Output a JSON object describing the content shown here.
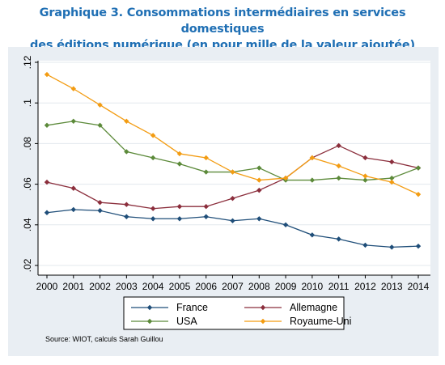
{
  "header": {
    "title_line1": "Graphique 3. Consommations intermédiaires en services domestiques",
    "title_line2": "des éditions numérique (en pour mille de la valeur ajoutée)"
  },
  "source": "Source: WIOT, calculs Sarah Guillou",
  "chart_data": {
    "type": "line",
    "title": "Graphique 3. Consommations intermédiaires en services domestiques des éditions numérique (en pour mille de la valeur ajoutée)",
    "x": [
      2000,
      2001,
      2002,
      2003,
      2004,
      2005,
      2006,
      2007,
      2008,
      2009,
      2010,
      2011,
      2012,
      2013,
      2014
    ],
    "x_tick_labels": [
      "2000",
      "2001",
      "2002",
      "2003",
      "2004",
      "2005",
      "2006",
      "2007",
      "2008",
      "2009",
      "2010",
      "2011",
      "2012",
      "2013",
      "2014"
    ],
    "ylim": [
      0.02,
      0.12
    ],
    "y_ticks": [
      0.02,
      0.04,
      0.06,
      0.08,
      0.1,
      0.12
    ],
    "y_tick_labels": [
      ".02",
      ".04",
      ".06",
      ".08",
      ".1",
      ".12"
    ],
    "grid": true,
    "legend_position": "bottom",
    "series": [
      {
        "name": "France",
        "color": "#1f4e79",
        "marker": "diamond",
        "values": [
          0.046,
          0.0475,
          0.047,
          0.044,
          0.043,
          0.043,
          0.044,
          0.042,
          0.043,
          0.04,
          0.035,
          0.033,
          0.03,
          0.029,
          0.0295
        ]
      },
      {
        "name": "Allemagne",
        "color": "#8b2e3c",
        "marker": "diamond",
        "values": [
          0.061,
          0.058,
          0.051,
          0.05,
          0.048,
          0.049,
          0.049,
          0.053,
          0.057,
          0.063,
          0.073,
          0.079,
          0.073,
          0.071,
          0.068
        ]
      },
      {
        "name": "USA",
        "color": "#5c8a3a",
        "marker": "diamond",
        "values": [
          0.089,
          0.091,
          0.089,
          0.076,
          0.073,
          0.07,
          0.066,
          0.066,
          0.068,
          0.062,
          0.062,
          0.063,
          0.062,
          0.063,
          0.068
        ]
      },
      {
        "name": "Royaume-Uni",
        "color": "#f39c12",
        "marker": "diamond",
        "values": [
          0.114,
          0.107,
          0.099,
          0.091,
          0.084,
          0.075,
          0.073,
          0.066,
          0.062,
          0.063,
          0.073,
          0.069,
          0.064,
          0.061,
          0.055
        ]
      }
    ]
  }
}
